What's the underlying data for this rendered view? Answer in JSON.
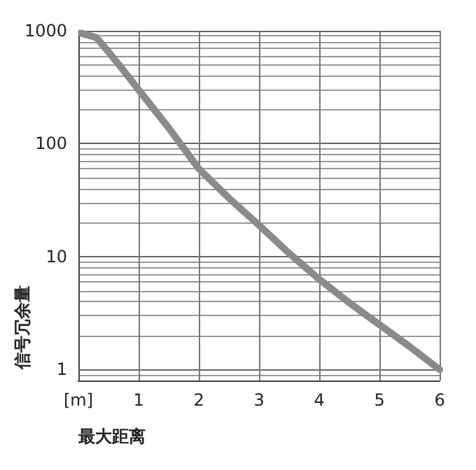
{
  "chart_data": {
    "type": "line",
    "xlabel": "最大距离",
    "ylabel": "信号冗余量",
    "x": [
      0.05,
      0.3,
      0.5,
      0.7,
      1,
      1.5,
      2,
      2.5,
      3,
      3.5,
      4,
      4.5,
      5,
      5.5,
      6
    ],
    "series": [
      {
        "color": "#8a8a8a",
        "values": [
          950,
          870,
          650,
          480,
          300,
          138,
          60,
          33,
          19,
          10.7,
          6.3,
          3.9,
          2.5,
          1.6,
          1
        ]
      }
    ],
    "xlim": [
      0,
      6
    ],
    "xticks": [
      {
        "value": 0,
        "label": "[m]"
      },
      1,
      2,
      3,
      4,
      5,
      6
    ],
    "ylim": [
      0.8,
      1000
    ],
    "yticks": [
      1,
      10,
      100,
      1000
    ],
    "log": "y",
    "grid": true,
    "marker": "none",
    "line_style": "solid"
  }
}
